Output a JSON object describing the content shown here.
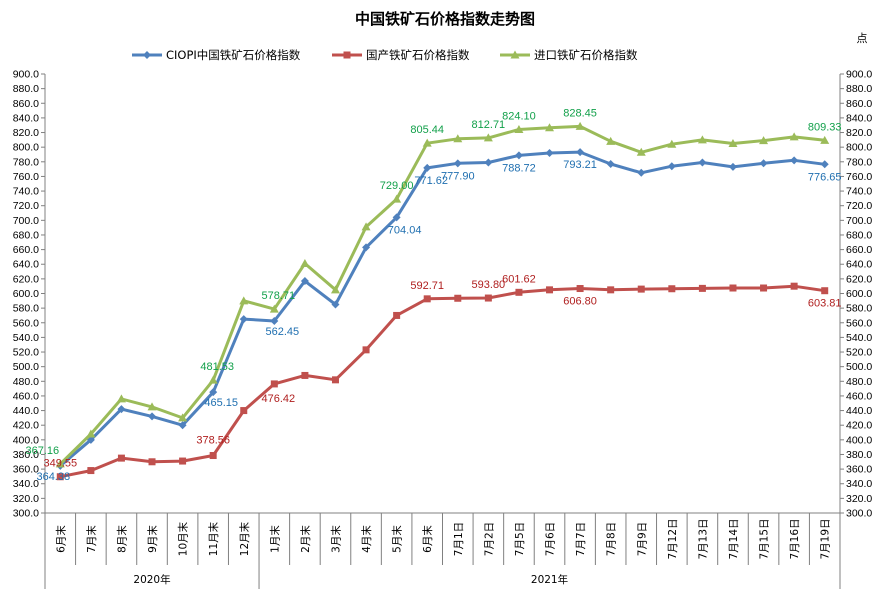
{
  "chart_data": {
    "type": "line",
    "title": "中国铁矿石价格指数走势图",
    "y_unit": "点",
    "ylim": [
      300,
      900
    ],
    "ytick_step": 20,
    "ytick_labels": [
      "300.0",
      "320.0",
      "340.0",
      "360.0",
      "380.0",
      "400.0",
      "420.0",
      "440.0",
      "460.0",
      "480.0",
      "500.0",
      "520.0",
      "540.0",
      "560.0",
      "580.0",
      "600.0",
      "620.0",
      "640.0",
      "660.0",
      "680.0",
      "700.0",
      "720.0",
      "740.0",
      "760.0",
      "780.0",
      "800.0",
      "820.0",
      "840.0",
      "860.0",
      "880.0",
      "900.0"
    ],
    "categories": [
      "6月末",
      "7月末",
      "8月末",
      "9月末",
      "10月末",
      "11月末",
      "12月末",
      "1月末",
      "2月末",
      "3月末",
      "4月末",
      "5月末",
      "6月末",
      "7月1日",
      "7月2日",
      "7月5日",
      "7月6日",
      "7月7日",
      "7月8日",
      "7月9日",
      "7月12日",
      "7月13日",
      "7月14日",
      "7月15日",
      "7月16日",
      "7月19日"
    ],
    "groups": [
      {
        "label": "2020年",
        "start": 0,
        "end": 6
      },
      {
        "label": "2021年",
        "start": 7,
        "end": 25
      }
    ],
    "legend_position": "top",
    "series": [
      {
        "name": "CIOPI中国铁矿石价格指数",
        "color": "#4f81bd",
        "label_color": "#1f6fb0",
        "marker": "diamond",
        "values": [
          364.38,
          400,
          442,
          432,
          420,
          465.15,
          565,
          562.45,
          617,
          585,
          663,
          704.04,
          771.62,
          777.9,
          779,
          788.72,
          792,
          793.21,
          777,
          765,
          774,
          779,
          773,
          778,
          782,
          776.65
        ],
        "labels": {
          "0": "364.38",
          "5": "465.15",
          "7": "562.45",
          "11": "704.04",
          "12": "771.62",
          "13": "777.90",
          "15": "788.72",
          "17": "793.21",
          "25": "776.65"
        }
      },
      {
        "name": "国产铁矿石价格指数",
        "color": "#c0504d",
        "label_color": "#b02020",
        "marker": "square",
        "values": [
          349.55,
          358,
          375,
          370,
          371,
          378.56,
          440,
          476.42,
          488,
          482,
          523,
          570,
          592.71,
          593.5,
          593.8,
          601.62,
          605,
          606.8,
          605,
          606,
          606.5,
          607,
          607.5,
          607.5,
          610,
          603.81
        ],
        "labels": {
          "0": "349.55",
          "5": "378.56",
          "7": "476.42",
          "12": "592.71",
          "14": "593.80",
          "15": "601.62",
          "17": "606.80",
          "25": "603.81"
        }
      },
      {
        "name": "进口铁矿石价格指数",
        "color": "#9bbb59",
        "label_color": "#12a04a",
        "marker": "triangle",
        "values": [
          367.16,
          408,
          456,
          445,
          430,
          481.53,
          590,
          578.71,
          641,
          605,
          691,
          729.0,
          805.44,
          811.5,
          812.71,
          824.1,
          826.5,
          828.45,
          808,
          793,
          804,
          810,
          805,
          809,
          814,
          809.33
        ],
        "labels": {
          "0": "367.16",
          "5": "481.53",
          "7": "578.71",
          "11": "729.00",
          "12": "805.44",
          "14": "812.71",
          "15": "824.10",
          "17": "828.45",
          "25": "809.33"
        }
      }
    ]
  }
}
